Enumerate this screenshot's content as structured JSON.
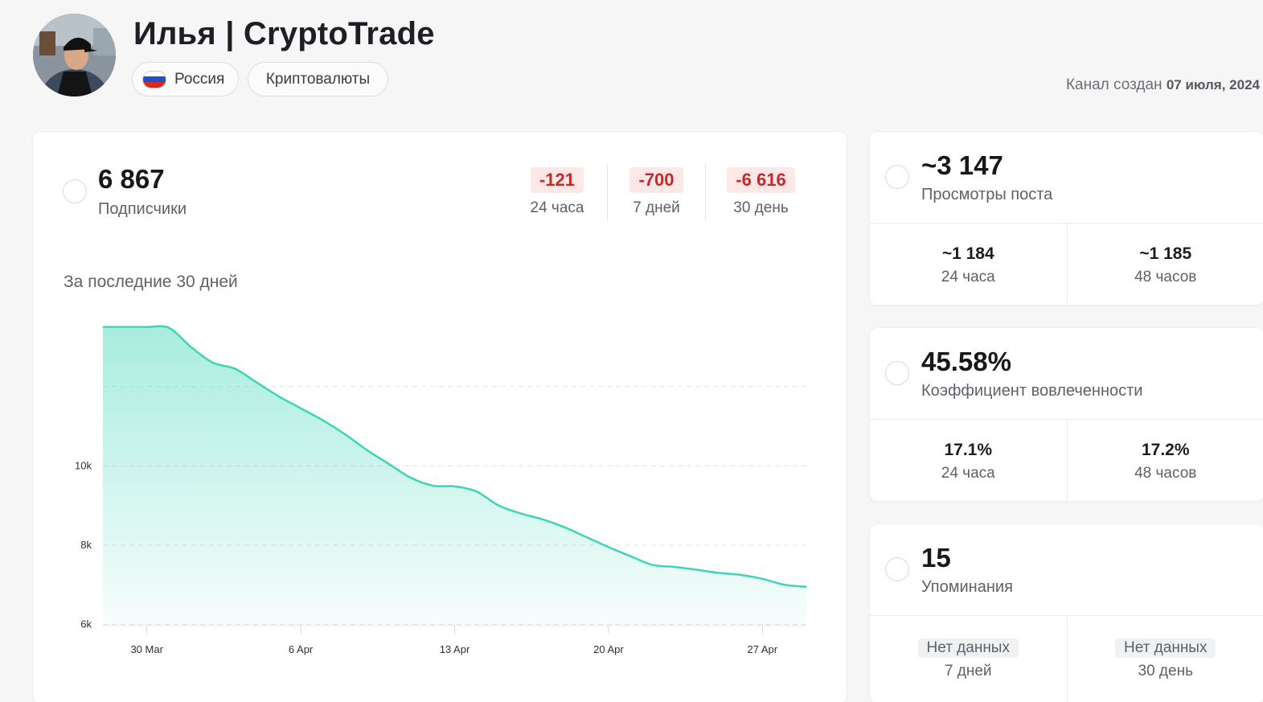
{
  "header": {
    "title": "Илья | CryptoTrade",
    "country": "Россия",
    "topic": "Криптовалюты",
    "created_label": "Канал создан",
    "created_date": "07 июля, 2024"
  },
  "subscribers": {
    "value": "6 867",
    "label": "Подписчики",
    "deltas": [
      {
        "value": "-121",
        "label": "24 часа"
      },
      {
        "value": "-700",
        "label": "7 дней"
      },
      {
        "value": "-6 616",
        "label": "30 день"
      }
    ],
    "section_label": "За последние 30 дней"
  },
  "views": {
    "value": "~3 147",
    "label": "Просмотры поста",
    "cells": [
      {
        "value": "~1 184",
        "label": "24 часа"
      },
      {
        "value": "~1 185",
        "label": "48 часов"
      }
    ]
  },
  "engagement": {
    "value": "45.58%",
    "label": "Коэффициент вовлеченности",
    "cells": [
      {
        "value": "17.1%",
        "label": "24 часа"
      },
      {
        "value": "17.2%",
        "label": "48 часов"
      }
    ]
  },
  "mentions": {
    "value": "15",
    "label": "Упоминания",
    "cells": [
      {
        "value": "Нет данных",
        "label": "7 дней"
      },
      {
        "value": "Нет данных",
        "label": "30 день"
      }
    ]
  },
  "colors": {
    "accent": "#3dd6b5",
    "negative": "#c12b2b",
    "negative_bg": "#fde7e7"
  },
  "flag_colors": [
    "#ffffff",
    "#1f4fc9",
    "#d52b1e"
  ],
  "chart_data": {
    "type": "area",
    "title": "",
    "xlabel": "",
    "ylabel": "",
    "x": [
      "2024-03-28",
      "2024-03-29",
      "2024-03-30",
      "2024-03-31",
      "2024-04-01",
      "2024-04-02",
      "2024-04-03",
      "2024-04-04",
      "2024-04-05",
      "2024-04-06",
      "2024-04-07",
      "2024-04-08",
      "2024-04-09",
      "2024-04-10",
      "2024-04-11",
      "2024-04-12",
      "2024-04-13",
      "2024-04-14",
      "2024-04-15",
      "2024-04-16",
      "2024-04-17",
      "2024-04-18",
      "2024-04-19",
      "2024-04-20",
      "2024-04-21",
      "2024-04-22",
      "2024-04-23",
      "2024-04-24",
      "2024-04-25",
      "2024-04-26",
      "2024-04-27",
      "2024-04-28",
      "2024-04-29"
    ],
    "y": [
      13500,
      13500,
      13500,
      13480,
      13000,
      12600,
      12450,
      12100,
      11750,
      11450,
      11150,
      10800,
      10400,
      10050,
      9700,
      9500,
      9480,
      9350,
      9000,
      8800,
      8650,
      8450,
      8200,
      7950,
      7720,
      7500,
      7450,
      7380,
      7300,
      7250,
      7150,
      7000,
      6950
    ],
    "x_ticks": [
      "30 Mar",
      "6 Apr",
      "13 Apr",
      "20 Apr",
      "27 Apr"
    ],
    "y_ticks": [
      "6k",
      "8k",
      "10k"
    ],
    "ylim": [
      5970,
      14000
    ],
    "grid": true,
    "legend": "none"
  }
}
